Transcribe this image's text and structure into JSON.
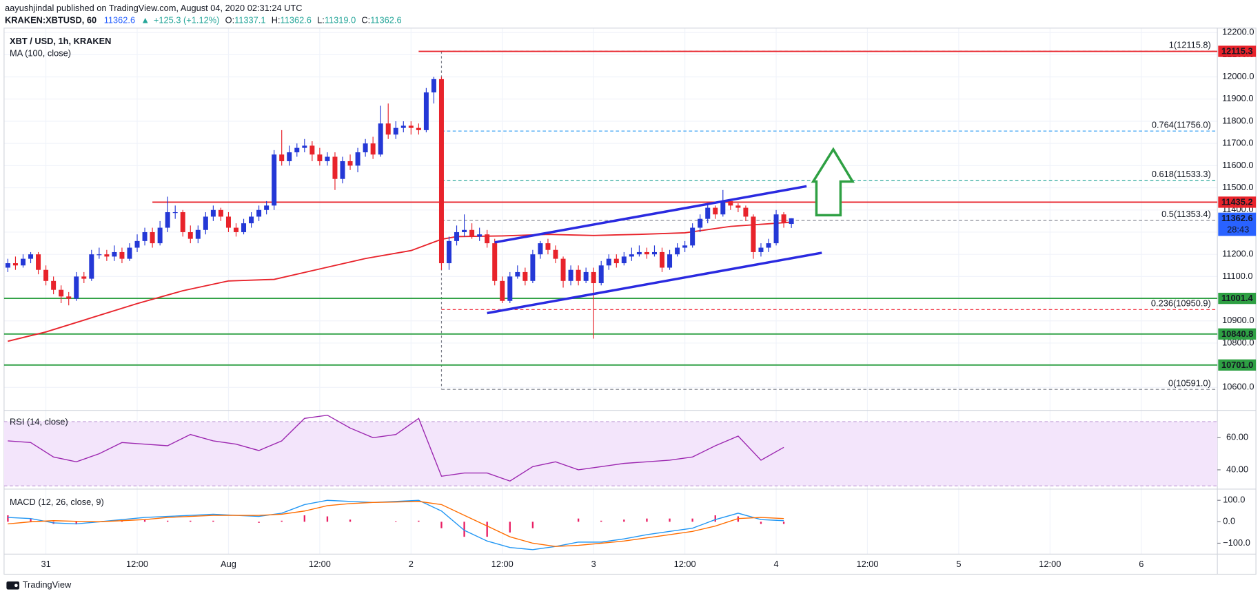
{
  "header": {
    "author_line": "aayushjindal published on TradingView.com, August 04, 2020 02:31:24 UTC",
    "symbol": "KRAKEN:XBTUSD, 60",
    "price": "11362.6",
    "change": "+125.3 (+1.12%)",
    "ohlc": [
      {
        "label": "O:",
        "value": "11337.1"
      },
      {
        "label": "H:",
        "value": "11362.6"
      },
      {
        "label": "L:",
        "value": "11319.0"
      },
      {
        "label": "C:",
        "value": "11362.6"
      }
    ]
  },
  "footer": {
    "brand": "TradingView"
  },
  "chart_data": {
    "type": "candlestick",
    "title": "XBT / USD, 1h, KRAKEN",
    "grid": true,
    "up_color": "#2438d6",
    "down_color": "#e8232b",
    "xlim": [
      -0.5,
      159
    ],
    "xticks": [
      {
        "value": 5,
        "label": "31"
      },
      {
        "value": 17,
        "label": "12:00"
      },
      {
        "value": 29,
        "label": "Aug"
      },
      {
        "value": 41,
        "label": "12:00"
      },
      {
        "value": 53,
        "label": "2"
      },
      {
        "value": 65,
        "label": "12:00"
      },
      {
        "value": 77,
        "label": "3"
      },
      {
        "value": 89,
        "label": "12:00"
      },
      {
        "value": 101,
        "label": "4"
      },
      {
        "value": 113,
        "label": "12:00"
      },
      {
        "value": 125,
        "label": "5"
      },
      {
        "value": 137,
        "label": "12:00"
      },
      {
        "value": 149,
        "label": "6"
      }
    ],
    "ylim": [
      10500,
      12220
    ],
    "yticks": [
      {
        "value": 10600,
        "label": "10600.0"
      },
      {
        "value": 10700,
        "label": "10700.0"
      },
      {
        "value": 10800,
        "label": "10800.0"
      },
      {
        "value": 10900,
        "label": "10900.0"
      },
      {
        "value": 11000,
        "label": "11000.0"
      },
      {
        "value": 11100,
        "label": "11100.0"
      },
      {
        "value": 11200,
        "label": "11200.0"
      },
      {
        "value": 11300,
        "label": "11300.0"
      },
      {
        "value": 11400,
        "label": "11400.0"
      },
      {
        "value": 11500,
        "label": "11500.0"
      },
      {
        "value": 11600,
        "label": "11600.0"
      },
      {
        "value": 11700,
        "label": "11700.0"
      },
      {
        "value": 11800,
        "label": "11800.0"
      },
      {
        "value": 11900,
        "label": "11900.0"
      },
      {
        "value": 12000,
        "label": "12000.0"
      },
      {
        "value": 12100,
        "label": "12100.0"
      },
      {
        "value": 12200,
        "label": "12200.0"
      }
    ],
    "candles": [
      [
        11140,
        11180,
        11120,
        11160
      ],
      [
        11160,
        11190,
        11130,
        11150
      ],
      [
        11150,
        11200,
        11140,
        11180
      ],
      [
        11180,
        11210,
        11160,
        11200
      ],
      [
        11200,
        11210,
        11110,
        11130
      ],
      [
        11130,
        11150,
        11060,
        11080
      ],
      [
        11080,
        11100,
        11020,
        11040
      ],
      [
        11040,
        11060,
        10980,
        11010
      ],
      [
        11010,
        11030,
        10970,
        11000
      ],
      [
        11000,
        11120,
        10990,
        11100
      ],
      [
        11100,
        11120,
        11070,
        11090
      ],
      [
        11090,
        11220,
        11080,
        11200
      ],
      [
        11200,
        11230,
        11180,
        11200
      ],
      [
        11200,
        11220,
        11170,
        11190
      ],
      [
        11190,
        11240,
        11170,
        11210
      ],
      [
        11210,
        11230,
        11160,
        11180
      ],
      [
        11180,
        11250,
        11170,
        11230
      ],
      [
        11230,
        11290,
        11210,
        11260
      ],
      [
        11260,
        11320,
        11240,
        11300
      ],
      [
        11300,
        11320,
        11230,
        11250
      ],
      [
        11250,
        11350,
        11240,
        11320
      ],
      [
        11320,
        11460,
        11300,
        11390
      ],
      [
        11390,
        11420,
        11360,
        11390
      ],
      [
        11390,
        11400,
        11280,
        11300
      ],
      [
        11300,
        11330,
        11250,
        11270
      ],
      [
        11270,
        11330,
        11250,
        11310
      ],
      [
        11310,
        11390,
        11290,
        11370
      ],
      [
        11370,
        11420,
        11350,
        11400
      ],
      [
        11400,
        11410,
        11350,
        11370
      ],
      [
        11370,
        11390,
        11300,
        11320
      ],
      [
        11320,
        11340,
        11280,
        11300
      ],
      [
        11300,
        11360,
        11290,
        11340
      ],
      [
        11340,
        11390,
        11320,
        11370
      ],
      [
        11370,
        11420,
        11350,
        11400
      ],
      [
        11400,
        11440,
        11380,
        11420
      ],
      [
        11420,
        11670,
        11400,
        11650
      ],
      [
        11650,
        11760,
        11600,
        11620
      ],
      [
        11620,
        11690,
        11600,
        11660
      ],
      [
        11660,
        11700,
        11640,
        11680
      ],
      [
        11680,
        11720,
        11660,
        11690
      ],
      [
        11690,
        11710,
        11620,
        11650
      ],
      [
        11650,
        11680,
        11600,
        11620
      ],
      [
        11620,
        11660,
        11600,
        11640
      ],
      [
        11640,
        11660,
        11490,
        11540
      ],
      [
        11540,
        11640,
        11520,
        11620
      ],
      [
        11620,
        11650,
        11580,
        11600
      ],
      [
        11600,
        11680,
        11570,
        11660
      ],
      [
        11660,
        11720,
        11640,
        11700
      ],
      [
        11700,
        11730,
        11630,
        11650
      ],
      [
        11650,
        11870,
        11640,
        11790
      ],
      [
        11790,
        11880,
        11720,
        11740
      ],
      [
        11740,
        11800,
        11720,
        11770
      ],
      [
        11770,
        11800,
        11750,
        11780
      ],
      [
        11780,
        11800,
        11740,
        11770
      ],
      [
        11770,
        11790,
        11740,
        11760
      ],
      [
        11760,
        11950,
        11750,
        11930
      ],
      [
        11930,
        12000,
        11880,
        11990
      ],
      [
        11990,
        12000,
        11130,
        11160
      ],
      [
        11160,
        11280,
        11130,
        11260
      ],
      [
        11260,
        11330,
        11240,
        11300
      ],
      [
        11300,
        11380,
        11280,
        11310
      ],
      [
        11310,
        11340,
        11270,
        11280
      ],
      [
        11280,
        11320,
        11260,
        11290
      ],
      [
        11290,
        11310,
        11230,
        11250
      ],
      [
        11250,
        11270,
        11060,
        11080
      ],
      [
        11080,
        11100,
        10980,
        10990
      ],
      [
        10990,
        11120,
        10980,
        11100
      ],
      [
        11100,
        11150,
        11090,
        11120
      ],
      [
        11120,
        11140,
        11060,
        11080
      ],
      [
        11080,
        11220,
        11070,
        11200
      ],
      [
        11200,
        11260,
        11180,
        11250
      ],
      [
        11250,
        11270,
        11200,
        11220
      ],
      [
        11220,
        11240,
        11160,
        11180
      ],
      [
        11180,
        11190,
        11050,
        11080
      ],
      [
        11080,
        11150,
        11060,
        11130
      ],
      [
        11130,
        11150,
        11060,
        11080
      ],
      [
        11080,
        11140,
        11070,
        11120
      ],
      [
        11120,
        11140,
        10820,
        11070
      ],
      [
        11070,
        11170,
        11060,
        11150
      ],
      [
        11150,
        11200,
        11130,
        11180
      ],
      [
        11180,
        11200,
        11140,
        11160
      ],
      [
        11160,
        11210,
        11150,
        11190
      ],
      [
        11190,
        11230,
        11170,
        11200
      ],
      [
        11200,
        11240,
        11190,
        11210
      ],
      [
        11210,
        11230,
        11180,
        11200
      ],
      [
        11200,
        11240,
        11190,
        11210
      ],
      [
        11210,
        11230,
        11120,
        11140
      ],
      [
        11140,
        11220,
        11130,
        11200
      ],
      [
        11200,
        11250,
        11190,
        11230
      ],
      [
        11230,
        11260,
        11210,
        11240
      ],
      [
        11240,
        11340,
        11230,
        11320
      ],
      [
        11320,
        11380,
        11300,
        11360
      ],
      [
        11360,
        11430,
        11340,
        11410
      ],
      [
        11410,
        11420,
        11360,
        11380
      ],
      [
        11380,
        11490,
        11370,
        11440
      ],
      [
        11440,
        11450,
        11400,
        11420
      ],
      [
        11420,
        11430,
        11390,
        11410
      ],
      [
        11410,
        11420,
        11350,
        11370
      ],
      [
        11370,
        11380,
        11180,
        11210
      ],
      [
        11210,
        11250,
        11190,
        11230
      ],
      [
        11230,
        11270,
        11210,
        11250
      ],
      [
        11250,
        11400,
        11240,
        11380
      ],
      [
        11380,
        11390,
        11320,
        11340
      ],
      [
        11337.1,
        11362.6,
        11319.0,
        11362.6
      ]
    ],
    "ma": {
      "name": "MA (100, close)",
      "color": "#e8232b",
      "x": [
        0,
        5,
        17,
        23,
        29,
        35,
        41,
        47,
        53,
        57,
        59,
        65,
        71,
        77,
        83,
        89,
        95,
        101,
        103
      ],
      "values": [
        10808,
        10850,
        10978,
        11036,
        11080,
        11087,
        11134,
        11181,
        11217,
        11268,
        11280,
        11283,
        11290,
        11285,
        11290,
        11297,
        11326,
        11340,
        11345
      ]
    },
    "trendlines": {
      "color": "#2a2ae0",
      "lines": [
        {
          "x": [
            64,
            105
          ],
          "values": [
            11254,
            11507
          ]
        },
        {
          "x": [
            63,
            107
          ],
          "values": [
            10935,
            11207
          ]
        }
      ]
    },
    "levels": [
      {
        "value": 12115.3,
        "label": "12115.3",
        "color": "#e8232b",
        "x_start": 54
      },
      {
        "value": 11435.2,
        "label": "11435.2",
        "color": "#e8232b",
        "x_start": 19
      },
      {
        "value": 11001.4,
        "label": "11001.4",
        "color": "#2ea043"
      },
      {
        "value": 10840.8,
        "label": "10840.8",
        "color": "#2ea043"
      },
      {
        "value": 10701.0,
        "label": "10701.0",
        "color": "#2ea043"
      }
    ],
    "fib": {
      "x_start": 57,
      "levels": [
        {
          "value": 12115.8,
          "label": "1(12115.8)",
          "color": "#787b86"
        },
        {
          "value": 11756.0,
          "label": "0.764(11756.0)",
          "color": "#2196f3"
        },
        {
          "value": 11533.3,
          "label": "0.618(11533.3)",
          "color": "#26a69a"
        },
        {
          "value": 11353.4,
          "label": "0.5(11353.4)",
          "color": "#787b86"
        },
        {
          "value": 10950.9,
          "label": "0.236(10950.9)",
          "color": "#f23645"
        },
        {
          "value": 10591.0,
          "label": "0(10591.0)",
          "color": "#787b86"
        }
      ]
    },
    "last_price": {
      "value": 11362.6,
      "label": "11362.6",
      "countdown": "28:43",
      "color": "#2962ff"
    },
    "rsi": {
      "name": "RSI (14, close)",
      "color": "#9c27b0",
      "ylim": [
        28.5,
        76.5
      ],
      "band": [
        30,
        70
      ],
      "yticks": [
        {
          "value": 60,
          "label": "60.00"
        },
        {
          "value": 40,
          "label": "40.00"
        }
      ],
      "x": [
        0,
        3,
        6,
        9,
        12,
        15,
        18,
        21,
        24,
        27,
        30,
        33,
        36,
        39,
        42,
        45,
        48,
        51,
        54,
        57,
        60,
        63,
        66,
        69,
        72,
        75,
        78,
        81,
        84,
        87,
        90,
        93,
        96,
        99,
        102
      ],
      "values": [
        58,
        57,
        48,
        45,
        50,
        57,
        56,
        55,
        62,
        58,
        56,
        52,
        58,
        72,
        74,
        66,
        60,
        62,
        72,
        36,
        38,
        38,
        33,
        42,
        45,
        40,
        42,
        44,
        45,
        46,
        48,
        55,
        61,
        46,
        54
      ]
    },
    "macd": {
      "name": "MACD (12, 26, close, 9)",
      "ylim": [
        -151,
        141
      ],
      "yticks": [
        {
          "value": 100,
          "label": "100.0"
        },
        {
          "value": 0,
          "label": "0.0"
        },
        {
          "value": -100,
          "label": "−100.0"
        }
      ],
      "x": [
        0,
        3,
        6,
        9,
        12,
        15,
        18,
        21,
        24,
        27,
        30,
        33,
        36,
        39,
        42,
        45,
        48,
        51,
        54,
        57,
        60,
        63,
        66,
        69,
        72,
        75,
        78,
        81,
        84,
        87,
        90,
        93,
        96,
        99,
        102
      ],
      "macd_color": "#2196f3",
      "signal_color": "#ff6d00",
      "hist_color": "#e91e63",
      "macd": [
        20,
        15,
        -5,
        -10,
        0,
        10,
        20,
        25,
        30,
        35,
        30,
        25,
        40,
        80,
        100,
        95,
        90,
        95,
        100,
        50,
        -40,
        -90,
        -120,
        -130,
        -115,
        -95,
        -95,
        -80,
        -60,
        -45,
        -30,
        10,
        40,
        10,
        5
      ],
      "signal": [
        -10,
        0,
        5,
        2,
        0,
        5,
        10,
        20,
        25,
        30,
        30,
        30,
        35,
        50,
        75,
        85,
        90,
        92,
        95,
        80,
        30,
        -20,
        -70,
        -100,
        -115,
        -110,
        -100,
        -90,
        -75,
        -60,
        -45,
        -20,
        15,
        20,
        15
      ],
      "hist": [
        30,
        15,
        -10,
        -12,
        0,
        5,
        10,
        5,
        5,
        5,
        0,
        -5,
        5,
        30,
        25,
        10,
        0,
        3,
        5,
        -30,
        -70,
        -70,
        -50,
        -30,
        0,
        15,
        5,
        10,
        15,
        15,
        15,
        30,
        25,
        -10,
        -10
      ]
    }
  }
}
